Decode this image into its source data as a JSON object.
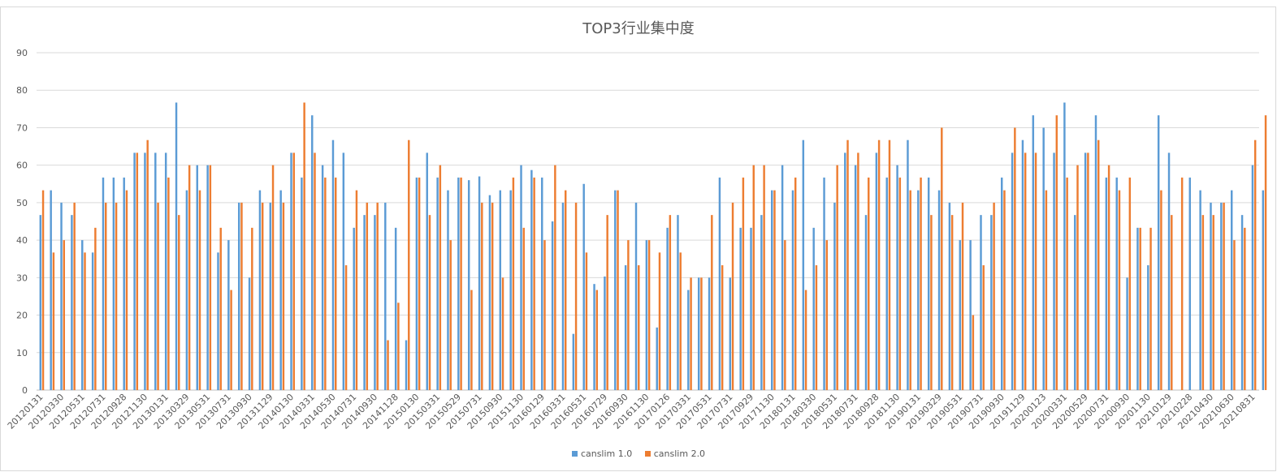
{
  "chart_data": {
    "type": "bar",
    "title": "TOP3行业集中度",
    "xlabel": "",
    "ylabel": "",
    "ylim": [
      0,
      90
    ],
    "yticks": [
      0,
      10,
      20,
      30,
      40,
      50,
      60,
      70,
      80,
      90
    ],
    "grid": true,
    "legend_position": "bottom",
    "x_tick_labels": [
      "20120131",
      "20120330",
      "20120531",
      "20120731",
      "20120928",
      "20121130",
      "20130131",
      "20130329",
      "20130531",
      "20130731",
      "20130930",
      "20131129",
      "20140130",
      "20140331",
      "20140530",
      "20140731",
      "20140930",
      "20141128",
      "20150130",
      "20150331",
      "20150529",
      "20150731",
      "20150930",
      "20151130",
      "20160129",
      "20160331",
      "20160531",
      "20160729",
      "20160930",
      "20161130",
      "20170126",
      "20170331",
      "20170531",
      "20170731",
      "20170929",
      "20171130",
      "20180131",
      "20180330",
      "20180531",
      "20180731",
      "20180928",
      "20181130",
      "20190131",
      "20190329",
      "20190531",
      "20190731",
      "20190930",
      "20191129",
      "20200123",
      "20200331",
      "20200529",
      "20200731",
      "20200930",
      "20201130",
      "20210129",
      "20210228",
      "20210430",
      "20210630",
      "20210831"
    ],
    "categories_count": 117,
    "series": [
      {
        "name": "canslim 1.0",
        "color": "#5b9bd5",
        "values": [
          46.7,
          53.3,
          50,
          46.7,
          40,
          36.7,
          56.7,
          56.7,
          56.7,
          63.3,
          63.3,
          63.3,
          63.3,
          76.7,
          53.3,
          60,
          60,
          36.7,
          40,
          50,
          30,
          53.3,
          50,
          53.3,
          63.3,
          56.7,
          73.3,
          60,
          66.7,
          63.3,
          43.3,
          46.7,
          46.7,
          50,
          43.3,
          13.3,
          56.7,
          63.3,
          56.7,
          53.3,
          56.7,
          56,
          57,
          52,
          53.3,
          53.3,
          60,
          58.7,
          56.7,
          45,
          50,
          15,
          55,
          28.3,
          30.3,
          53.3,
          33.3,
          50,
          40,
          16.7,
          43.3,
          46.7,
          26.7,
          30,
          30,
          56.7,
          30,
          43.3,
          43.3,
          46.7,
          53.3,
          60,
          53.3,
          66.7,
          43.3,
          56.7,
          50,
          63.3,
          60,
          46.7,
          63.3,
          56.7,
          60,
          66.7,
          53.3,
          56.7,
          53.3,
          50,
          40,
          40,
          46.7,
          46.7,
          56.7,
          63.3,
          66.7,
          73.3,
          70,
          63.3,
          76.7,
          46.7,
          63.3,
          73.3,
          56.7,
          56.7,
          30,
          43.3,
          33.3,
          73.3,
          63.3,
          0,
          56.7,
          53.3,
          50,
          50,
          53.3,
          46.7,
          60,
          53.3
        ]
      },
      {
        "name": "canslim 2.0",
        "color": "#ed7d31",
        "values": [
          53.3,
          36.7,
          40,
          50,
          36.7,
          43.3,
          50,
          50,
          53.3,
          63.3,
          66.7,
          50,
          56.7,
          46.7,
          60,
          53.3,
          60,
          43.3,
          26.7,
          50,
          43.3,
          50,
          60,
          50,
          63.3,
          76.7,
          63.3,
          56.7,
          56.7,
          33.3,
          53.3,
          50,
          50,
          13.3,
          23.3,
          66.7,
          56.7,
          46.7,
          60,
          40,
          56.7,
          26.7,
          50,
          50,
          30,
          56.7,
          43.3,
          56.7,
          40,
          60,
          53.3,
          50,
          36.7,
          26.7,
          46.7,
          53.3,
          40,
          33.3,
          40,
          36.7,
          46.7,
          36.7,
          30,
          30,
          46.7,
          33.3,
          50,
          56.7,
          60,
          60,
          53.3,
          40,
          56.7,
          26.7,
          33.3,
          40,
          60,
          66.7,
          63.3,
          56.7,
          66.7,
          66.7,
          56.7,
          53.3,
          56.7,
          46.7,
          70,
          46.7,
          50,
          20,
          33.3,
          50,
          53.3,
          70,
          63.3,
          63.3,
          53.3,
          73.3,
          56.7,
          60,
          63.3,
          66.7,
          60,
          53.3,
          56.7,
          43.3,
          43.3,
          53.3,
          46.7,
          56.7,
          0,
          46.7,
          46.7,
          50,
          40,
          43.3,
          66.7,
          73.3
        ]
      }
    ]
  }
}
